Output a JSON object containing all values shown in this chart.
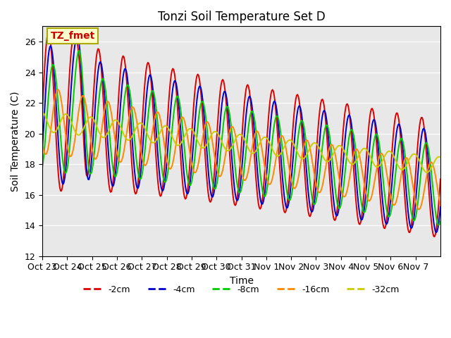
{
  "title": "Tonzi Soil Temperature Set D",
  "xlabel": "Time",
  "ylabel": "Soil Temperature (C)",
  "ylim": [
    12,
    27
  ],
  "series_colors": [
    "#dd0000",
    "#0000cc",
    "#00cc00",
    "#ff8800",
    "#cccc00"
  ],
  "series_labels": [
    "-2cm",
    "-4cm",
    "-8cm",
    "-16cm",
    "-32cm"
  ],
  "xtick_labels": [
    "Oct 23",
    "Oct 24",
    "Oct 25",
    "Oct 26",
    "Oct 27",
    "Oct 28",
    "Oct 29",
    "Oct 30",
    "Oct 31",
    "Nov 1",
    "Nov 2",
    "Nov 3",
    "Nov 4",
    "Nov 5",
    "Nov 6",
    "Nov 7"
  ],
  "n_points": 480,
  "background_color": "#e8e8e8",
  "annotation": "TZ_fmet"
}
